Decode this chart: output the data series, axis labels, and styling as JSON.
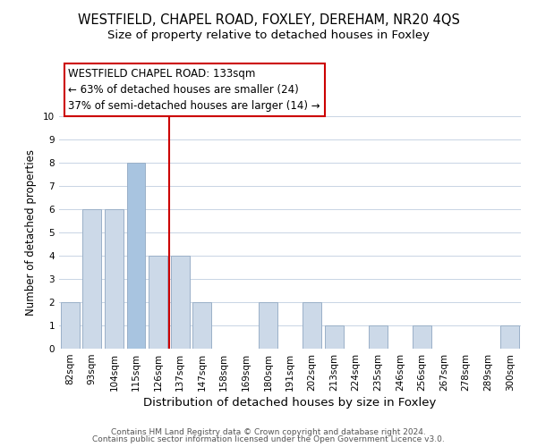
{
  "title": "WESTFIELD, CHAPEL ROAD, FOXLEY, DEREHAM, NR20 4QS",
  "subtitle": "Size of property relative to detached houses in Foxley",
  "xlabel": "Distribution of detached houses by size in Foxley",
  "ylabel": "Number of detached properties",
  "categories": [
    "82sqm",
    "93sqm",
    "104sqm",
    "115sqm",
    "126sqm",
    "137sqm",
    "147sqm",
    "158sqm",
    "169sqm",
    "180sqm",
    "191sqm",
    "202sqm",
    "213sqm",
    "224sqm",
    "235sqm",
    "246sqm",
    "256sqm",
    "267sqm",
    "278sqm",
    "289sqm",
    "300sqm"
  ],
  "values": [
    2,
    6,
    6,
    8,
    4,
    4,
    2,
    0,
    0,
    2,
    0,
    2,
    1,
    0,
    1,
    0,
    1,
    0,
    0,
    0,
    1
  ],
  "bar_color": "#ccd9e8",
  "bar_edge_color": "#9ab0c8",
  "highlight_index": 3,
  "highlight_bar_color": "#a8c4e0",
  "vline_x": 4.5,
  "vline_color": "#cc0000",
  "annotation_box_facecolor": "#ffffff",
  "annotation_box_edgecolor": "#cc0000",
  "annotation_line1": "WESTFIELD CHAPEL ROAD: 133sqm",
  "annotation_line2": "← 63% of detached houses are smaller (24)",
  "annotation_line3": "37% of semi-detached houses are larger (14) →",
  "ylim": [
    0,
    10
  ],
  "yticks": [
    0,
    1,
    2,
    3,
    4,
    5,
    6,
    7,
    8,
    9,
    10
  ],
  "footer1": "Contains HM Land Registry data © Crown copyright and database right 2024.",
  "footer2": "Contains public sector information licensed under the Open Government Licence v3.0.",
  "title_fontsize": 10.5,
  "subtitle_fontsize": 9.5,
  "xlabel_fontsize": 9.5,
  "ylabel_fontsize": 8.5,
  "tick_fontsize": 7.5,
  "annot_fontsize": 8.5,
  "footer_fontsize": 6.5
}
